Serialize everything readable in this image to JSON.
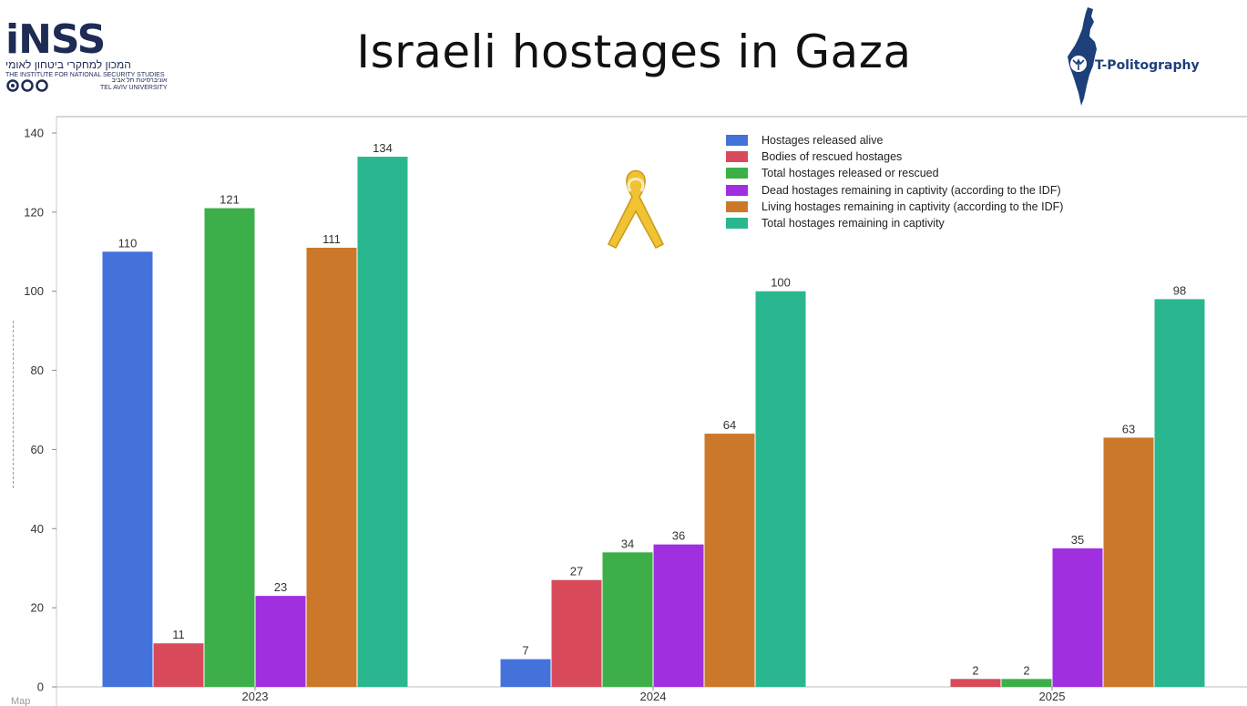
{
  "header": {
    "title": "Israeli hostages in Gaza",
    "left_logo": {
      "word": "iNSS",
      "line_he": "המכון למחקרי ביטחון לאומי",
      "line_en": "THE INSTITUTE FOR NATIONAL SECURITY STUDIES",
      "univ_he": "אוניברסיטת תל אביב",
      "univ_en": "TEL AVIV UNIVERSITY"
    },
    "right_logo": {
      "brand": "T-Politography"
    }
  },
  "corner_text": "Map",
  "colors": {
    "released_alive": "#4472db",
    "bodies": "#d84a5a",
    "total_released": "#3caf48",
    "dead_remaining": "#a02fe0",
    "living_remaining": "#cc782a",
    "total_remaining": "#2ab78f",
    "ribbon": "#f1c232"
  },
  "chart_data": {
    "type": "bar",
    "title": "Israeli hostages in Gaza",
    "xlabel": "",
    "ylabel": "",
    "ylim": [
      0,
      140
    ],
    "yticks": [
      0,
      20,
      40,
      60,
      80,
      100,
      120,
      140
    ],
    "grid": false,
    "legend_position": "top-right",
    "categories": [
      "2023",
      "2024",
      "2025"
    ],
    "series": [
      {
        "name": "Hostages released alive",
        "color": "#4472db",
        "values": [
          110,
          7,
          null
        ]
      },
      {
        "name": "Bodies of rescued hostages",
        "color": "#d84a5a",
        "values": [
          11,
          27,
          2
        ]
      },
      {
        "name": "Total hostages released or rescued",
        "color": "#3caf48",
        "values": [
          121,
          34,
          2
        ]
      },
      {
        "name": "Dead hostages remaining in captivity (according to the IDF)",
        "color": "#a02fe0",
        "values": [
          23,
          36,
          35
        ]
      },
      {
        "name": "Living hostages remaining in captivity (according to the IDF)",
        "color": "#cc782a",
        "values": [
          111,
          64,
          63
        ]
      },
      {
        "name": "Total hostages remaining in captivity",
        "color": "#2ab78f",
        "values": [
          134,
          100,
          98
        ]
      }
    ]
  }
}
